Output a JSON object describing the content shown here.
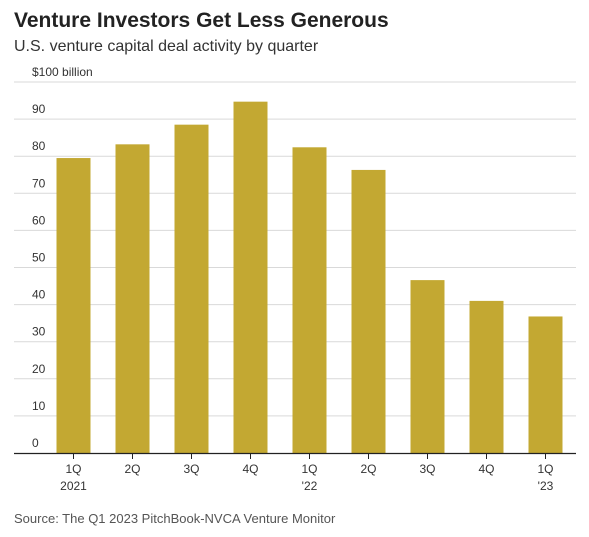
{
  "header": {
    "title": "Venture Investors Get Less Generous",
    "subtitle": "U.S. venture capital deal activity by quarter"
  },
  "footer": {
    "source": "Source: The Q1 2023 PitchBook-NVCA Venture Monitor"
  },
  "colors": {
    "bar": "#c3a832",
    "grid": "#d9d9d9",
    "axis": "#222222"
  },
  "chart_data": {
    "type": "bar",
    "title": "Venture Investors Get Less Generous",
    "subtitle": "U.S. venture capital deal activity by quarter",
    "ylabel": "$100 billion",
    "ylim": [
      0,
      100
    ],
    "grid": true,
    "y_ticks": [
      {
        "value": 100,
        "label": "$100 billion"
      },
      {
        "value": 90,
        "label": "90"
      },
      {
        "value": 80,
        "label": "80"
      },
      {
        "value": 70,
        "label": "70"
      },
      {
        "value": 60,
        "label": "60"
      },
      {
        "value": 50,
        "label": "50"
      },
      {
        "value": 40,
        "label": "40"
      },
      {
        "value": 30,
        "label": "30"
      },
      {
        "value": 20,
        "label": "20"
      },
      {
        "value": 10,
        "label": "10"
      },
      {
        "value": 0,
        "label": "0"
      }
    ],
    "categories": [
      {
        "label": "1Q",
        "sublabel": "2021"
      },
      {
        "label": "2Q",
        "sublabel": ""
      },
      {
        "label": "3Q",
        "sublabel": ""
      },
      {
        "label": "4Q",
        "sublabel": ""
      },
      {
        "label": "1Q",
        "sublabel": "'22"
      },
      {
        "label": "2Q",
        "sublabel": ""
      },
      {
        "label": "3Q",
        "sublabel": ""
      },
      {
        "label": "4Q",
        "sublabel": ""
      },
      {
        "label": "1Q",
        "sublabel": "'23"
      }
    ],
    "values": [
      79.5,
      83.2,
      88.5,
      94.7,
      82.4,
      76.3,
      46.6,
      41.0,
      36.8
    ]
  }
}
